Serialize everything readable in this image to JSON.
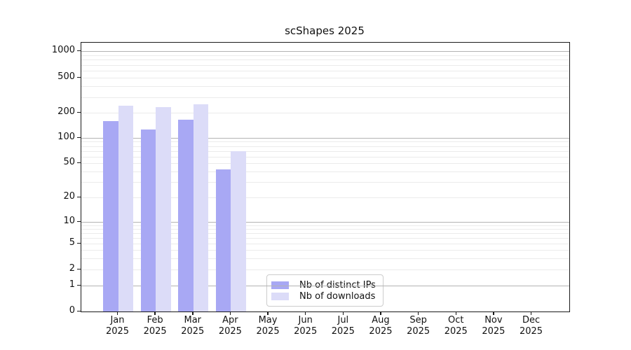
{
  "title": "scShapes 2025",
  "chart_data": {
    "type": "bar",
    "title": "scShapes 2025",
    "yscale": "symlog",
    "ylim": [
      0,
      1280
    ],
    "grid": true,
    "legend_position": "lower center-left",
    "y_ticks": [
      0,
      1,
      2,
      5,
      10,
      20,
      50,
      100,
      200,
      500,
      1000
    ],
    "categories": [
      "Jan 2025",
      "Feb 2025",
      "Mar 2025",
      "Apr 2025",
      "May 2025",
      "Jun 2025",
      "Jul 2025",
      "Aug 2025",
      "Sep 2025",
      "Oct 2025",
      "Nov 2025",
      "Dec 2025"
    ],
    "series": [
      {
        "name": "Nb of distinct IPs",
        "color": "#a8a8f4",
        "values": [
          160,
          125,
          165,
          42,
          0,
          0,
          0,
          0,
          0,
          0,
          0,
          0
        ]
      },
      {
        "name": "Nb of downloads",
        "color": "#dcdcf8",
        "values": [
          240,
          230,
          250,
          70,
          0,
          0,
          0,
          0,
          0,
          0,
          0,
          0
        ]
      }
    ]
  }
}
